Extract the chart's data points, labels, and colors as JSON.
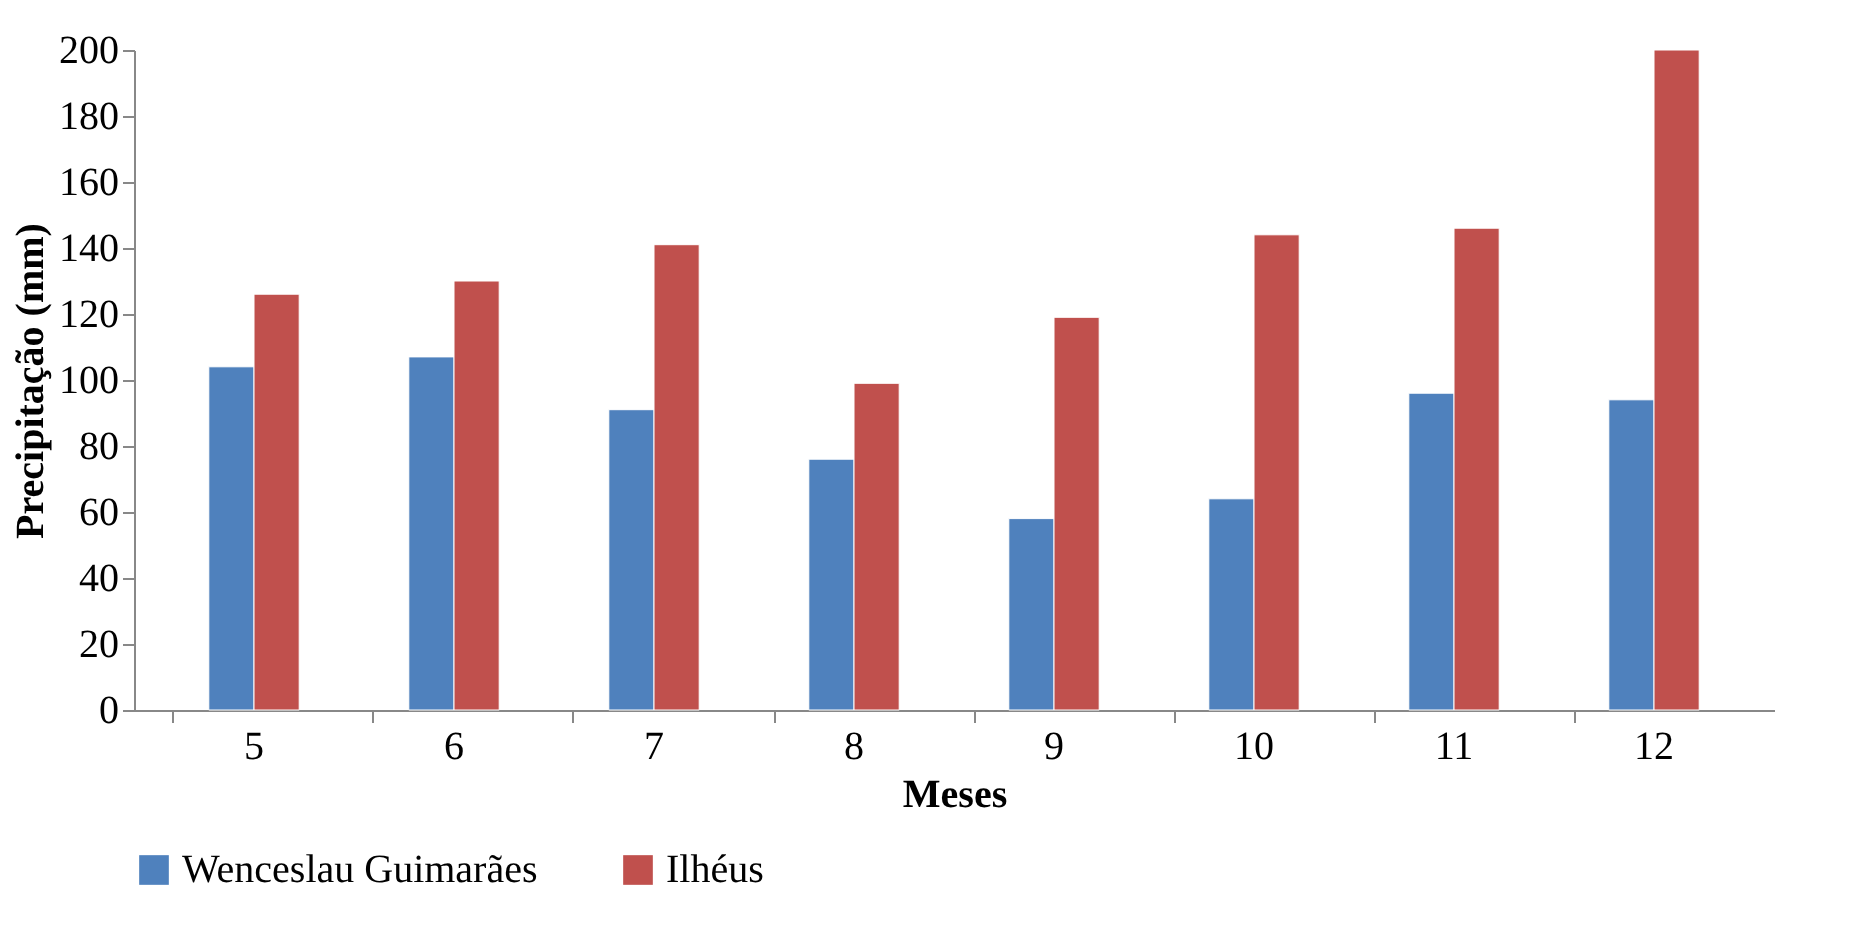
{
  "chart_data": {
    "type": "bar",
    "xlabel": "Meses",
    "ylabel": "Precipitação (mm)",
    "categories": [
      "5",
      "6",
      "7",
      "8",
      "9",
      "10",
      "11",
      "12"
    ],
    "series": [
      {
        "name": "Wenceslau Guimarães",
        "color": "#4f81bd",
        "values": [
          104,
          107,
          91,
          76,
          58,
          64,
          96,
          94
        ]
      },
      {
        "name": "Ilhéus",
        "color": "#c0504d",
        "values": [
          126,
          130,
          141,
          99,
          119,
          144,
          146,
          200
        ]
      }
    ],
    "ylim": [
      0,
      200
    ],
    "yticks": [
      0,
      20,
      40,
      60,
      80,
      100,
      120,
      140,
      160,
      180,
      200
    ],
    "grid": false,
    "legend": "bottom"
  }
}
